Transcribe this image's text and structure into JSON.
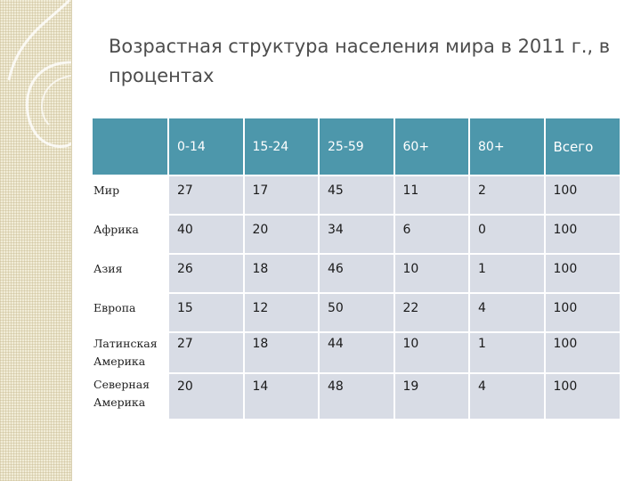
{
  "slide": {
    "title": "Возрастная структура населения мира в 2011 г., в процентах"
  },
  "table": {
    "headers": [
      "",
      "0-14",
      "15-24",
      "25-59",
      "60+",
      "80+",
      "Всего"
    ],
    "rows": [
      {
        "label": "Мир",
        "values": [
          "27",
          "17",
          "45",
          "11",
          "2",
          "100"
        ]
      },
      {
        "label": "Африка",
        "values": [
          "40",
          "20",
          "34",
          "6",
          "0",
          "100"
        ]
      },
      {
        "label": "Азия",
        "values": [
          "26",
          "18",
          "46",
          "10",
          "1",
          "100"
        ]
      },
      {
        "label": "Европа",
        "values": [
          "15",
          "12",
          "50",
          "22",
          "4",
          "100"
        ]
      },
      {
        "label": "Латинская Америка",
        "values": [
          "27",
          "18",
          "44",
          "10",
          "1",
          "100"
        ]
      },
      {
        "label": "Северная Америка",
        "values": [
          "20",
          "14",
          "48",
          "19",
          "4",
          "100"
        ]
      }
    ]
  }
}
